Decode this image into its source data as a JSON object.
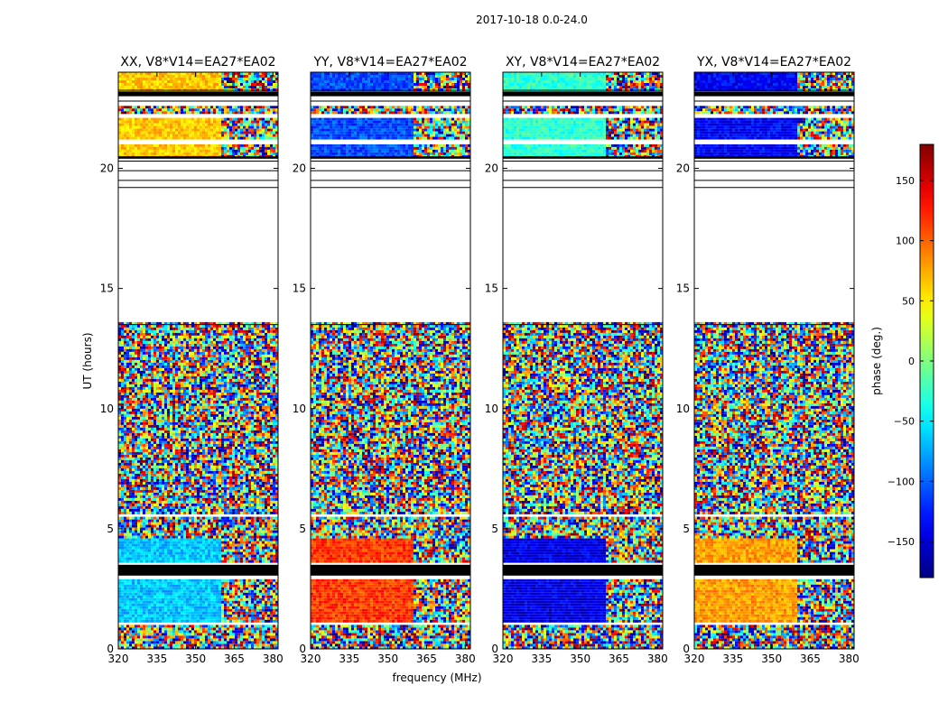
{
  "figure": {
    "suptitle": "2017-10-18 0.0-24.0"
  },
  "chart_data": {
    "type": "heatmap",
    "shared": {
      "xlabel": "frequency (MHz)",
      "ylabel": "UT (hours)",
      "xlim": [
        320,
        382
      ],
      "ylim": [
        0,
        24
      ],
      "xticks": [
        320,
        335,
        350,
        365,
        380
      ],
      "yticks": [
        0,
        5,
        10,
        15,
        20
      ],
      "colormap": "jet"
    },
    "colorbar": {
      "label": "phase (deg.)",
      "range": [
        -180,
        180
      ],
      "ticks": [
        150,
        100,
        50,
        0,
        -50,
        -100,
        -150
      ],
      "tick_labels": [
        "150",
        "100",
        "50",
        "0",
        "−50",
        "−100",
        "−150"
      ]
    },
    "panels": [
      {
        "title": "XX, V8*V14=EA27*EA02",
        "polarization": "XX",
        "color_levels": {
          "late": 0.68,
          "early": 0.32
        }
      },
      {
        "title": "YY, V8*V14=EA27*EA02",
        "polarization": "YY",
        "color_levels": {
          "late": 0.2,
          "early": 0.82
        }
      },
      {
        "title": "XY, V8*V14=EA27*EA02",
        "polarization": "XY",
        "color_levels": {
          "late": 0.42,
          "early": 0.1
        }
      },
      {
        "title": "YX, V8*V14=EA27*EA02",
        "polarization": "YX",
        "color_levels": {
          "late": 0.12,
          "early": 0.72
        }
      }
    ],
    "flagged_rows_ut": [
      {
        "start": 3.05,
        "end": 3.5
      },
      {
        "start": 20.4,
        "end": 20.5
      },
      {
        "start": 23.0,
        "end": 23.2
      }
    ],
    "empty_ut_range": [
      13.6,
      20.3
    ]
  }
}
